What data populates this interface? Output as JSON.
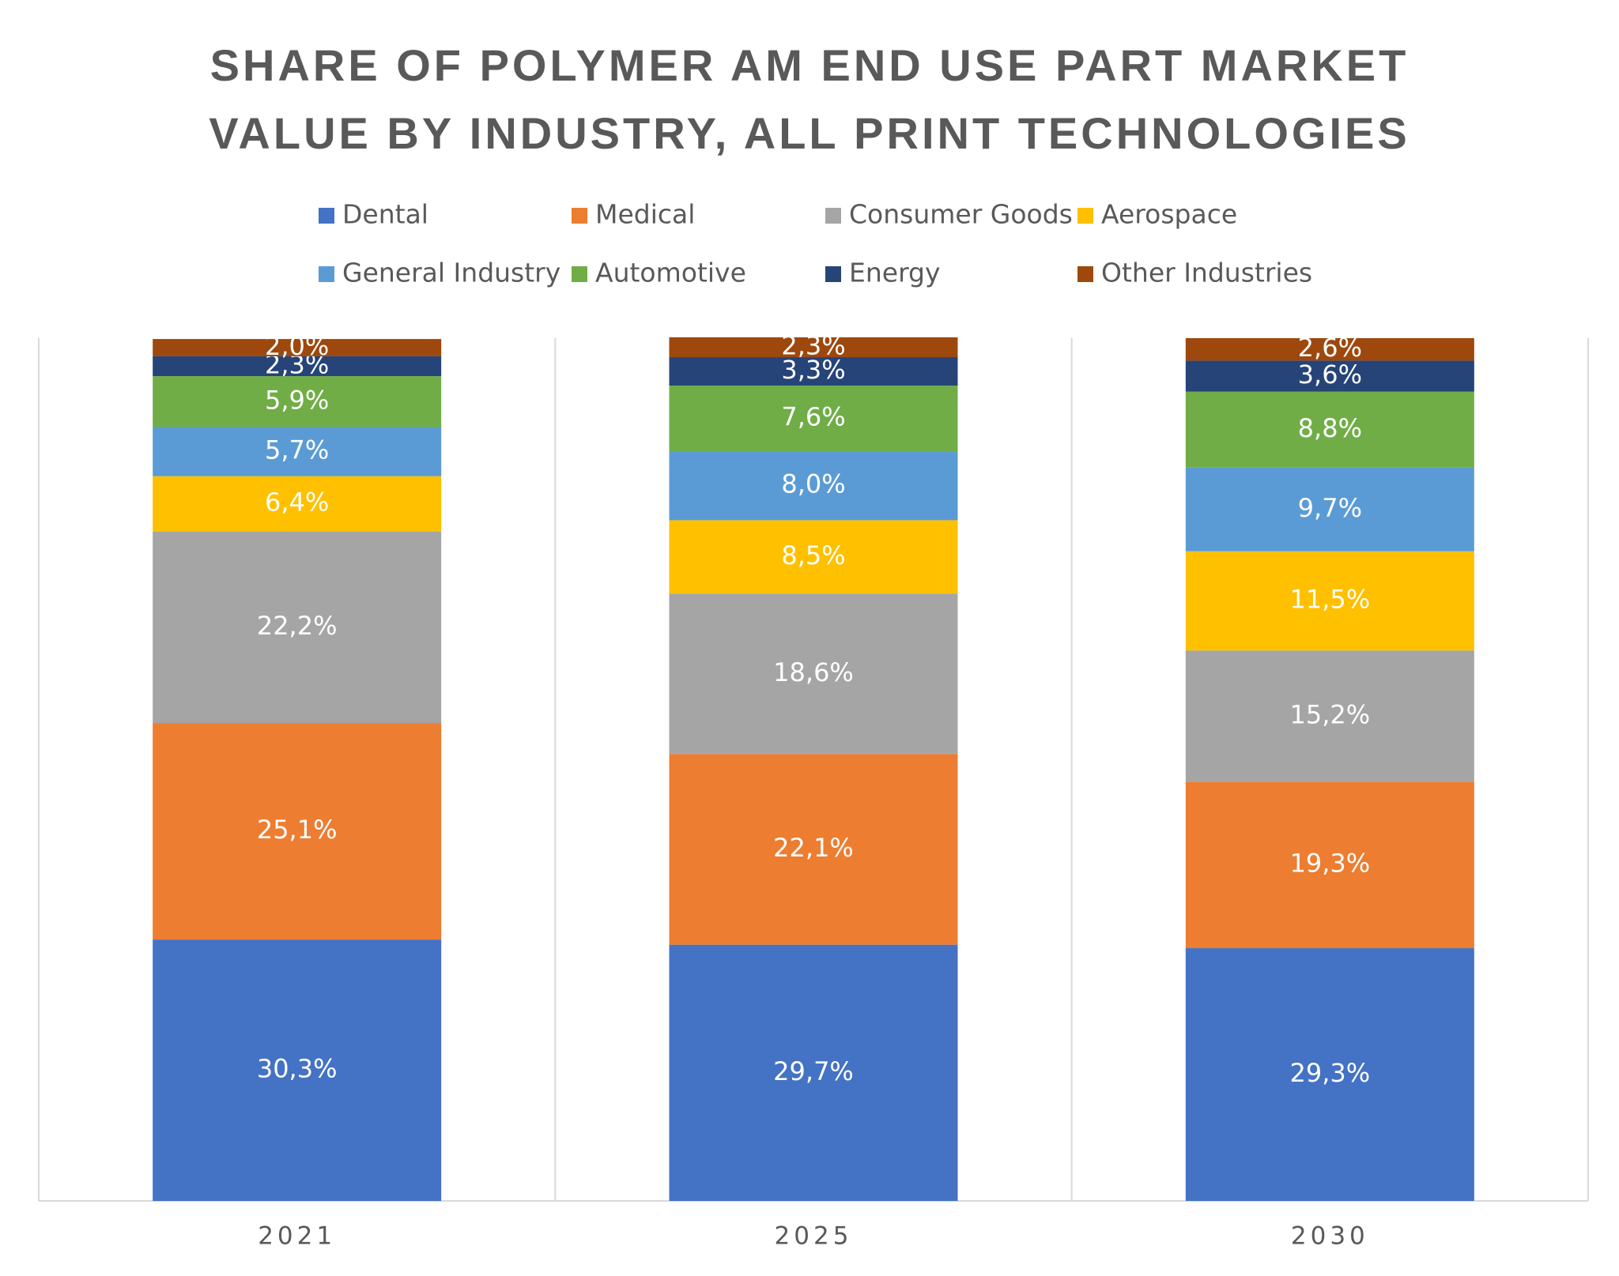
{
  "chart_data": {
    "type": "stacked_bar",
    "title": "SHARE OF POLYMER AM END USE PART MARKET VALUE BY INDUSTRY, ALL PRINT TECHNOLOGIES",
    "categories": [
      "2021",
      "2025",
      "2030"
    ],
    "ylim": [
      0,
      100
    ],
    "series": [
      {
        "name": "Dental",
        "color": "#4472c4",
        "values": [
          30.3,
          29.7,
          29.3
        ],
        "value_labels": [
          "30,3%",
          "29,7%",
          "29,3%"
        ]
      },
      {
        "name": "Medical",
        "color": "#ed7d31",
        "values": [
          25.1,
          22.1,
          19.3
        ],
        "value_labels": [
          "25,1%",
          "22,1%",
          "19,3%"
        ]
      },
      {
        "name": "Consumer Goods",
        "color": "#a5a5a5",
        "values": [
          22.2,
          18.6,
          15.2
        ],
        "value_labels": [
          "22,2%",
          "18,6%",
          "15,2%"
        ]
      },
      {
        "name": "Aerospace",
        "color": "#ffc000",
        "values": [
          6.4,
          8.5,
          11.5
        ],
        "value_labels": [
          "6,4%",
          "8,5%",
          "11,5%"
        ]
      },
      {
        "name": "General Industry",
        "color": "#5b9bd5",
        "values": [
          5.7,
          8.0,
          9.7
        ],
        "value_labels": [
          "5,7%",
          "8,0%",
          "9,7%"
        ]
      },
      {
        "name": "Automotive",
        "color": "#70ad47",
        "values": [
          5.9,
          7.6,
          8.8
        ],
        "value_labels": [
          "5,9%",
          "7,6%",
          "8,8%"
        ]
      },
      {
        "name": "Energy",
        "color": "#264478",
        "values": [
          2.3,
          3.3,
          3.6
        ],
        "value_labels": [
          "2,3%",
          "3,3%",
          "3,6%"
        ]
      },
      {
        "name": "Other Industries",
        "color": "#9e480e",
        "values": [
          2.0,
          2.3,
          2.6
        ],
        "value_labels": [
          "2,0%",
          "2,3%",
          "2,6%"
        ]
      }
    ]
  }
}
